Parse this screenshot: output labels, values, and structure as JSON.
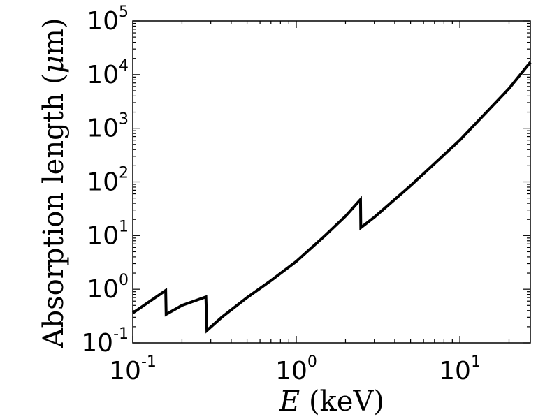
{
  "chart_data": {
    "type": "line",
    "title": "",
    "xlabel": "E (keV)",
    "xlabel_var": "E",
    "xlabel_unit": " (keV)",
    "ylabel": "Absorption length (μm)",
    "ylabel_prefix": "Absorption length (",
    "ylabel_mu": "μ",
    "ylabel_suffix": "m)",
    "xscale": "log",
    "yscale": "log",
    "xlim": [
      0.1,
      27
    ],
    "ylim": [
      0.1,
      100000
    ],
    "grid": false,
    "legend": "none",
    "line_color": "#000000",
    "x_ticks": [
      {
        "value": 0.1,
        "base": "10",
        "exp": "-1"
      },
      {
        "value": 1,
        "base": "10",
        "exp": "0"
      },
      {
        "value": 10,
        "base": "10",
        "exp": "1"
      }
    ],
    "y_ticks": [
      {
        "value": 0.1,
        "base": "10",
        "exp": "-1"
      },
      {
        "value": 1,
        "base": "10",
        "exp": "0"
      },
      {
        "value": 10,
        "base": "10",
        "exp": "1"
      },
      {
        "value": 100,
        "base": "10",
        "exp": "2"
      },
      {
        "value": 1000,
        "base": "10",
        "exp": "3"
      },
      {
        "value": 10000,
        "base": "10",
        "exp": "4"
      },
      {
        "value": 100000,
        "base": "10",
        "exp": "5"
      }
    ],
    "series": [
      {
        "x": [
          0.1,
          0.159,
          0.16,
          0.2,
          0.28,
          0.284,
          0.35,
          0.5,
          0.7,
          1.0,
          1.5,
          2.0,
          2.47,
          2.48,
          3.0,
          5.0,
          10.0,
          20.0,
          27.0
        ],
        "y": [
          0.36,
          0.95,
          0.34,
          0.5,
          0.72,
          0.17,
          0.3,
          0.7,
          1.45,
          3.3,
          10.0,
          23.0,
          47.0,
          14.0,
          22.0,
          85.0,
          600.0,
          5500.0,
          17000.0
        ]
      }
    ]
  }
}
